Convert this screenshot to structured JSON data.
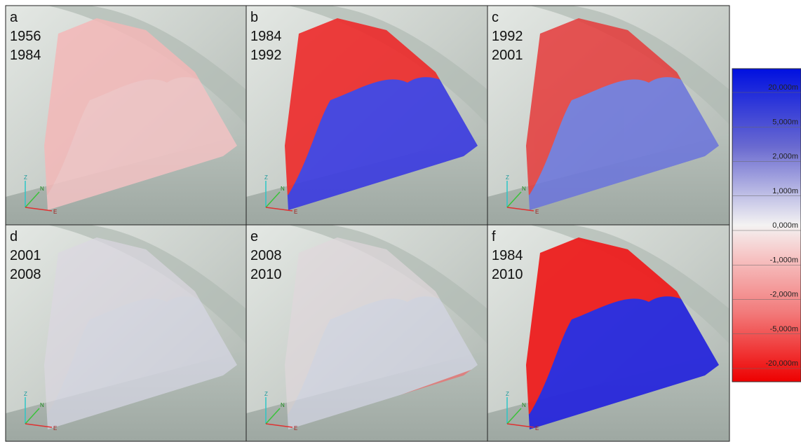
{
  "panels": [
    {
      "letter": "a",
      "years": [
        "1956",
        "1984"
      ]
    },
    {
      "letter": "b",
      "years": [
        "1984",
        "1992"
      ]
    },
    {
      "letter": "c",
      "years": [
        "1992",
        "2001"
      ]
    },
    {
      "letter": "d",
      "years": [
        "2001",
        "2008"
      ]
    },
    {
      "letter": "e",
      "years": [
        "2008",
        "2010"
      ]
    },
    {
      "letter": "f",
      "years": [
        "1984",
        "2010"
      ]
    }
  ],
  "axis_labels": [
    "Z",
    "N",
    "E"
  ],
  "legend": {
    "labels": [
      "20,000m",
      "5,000m",
      "2,000m",
      "1,000m",
      "0,000m",
      "-1,000m",
      "-2,000m",
      "-5,000m",
      "-20,000m"
    ]
  }
}
